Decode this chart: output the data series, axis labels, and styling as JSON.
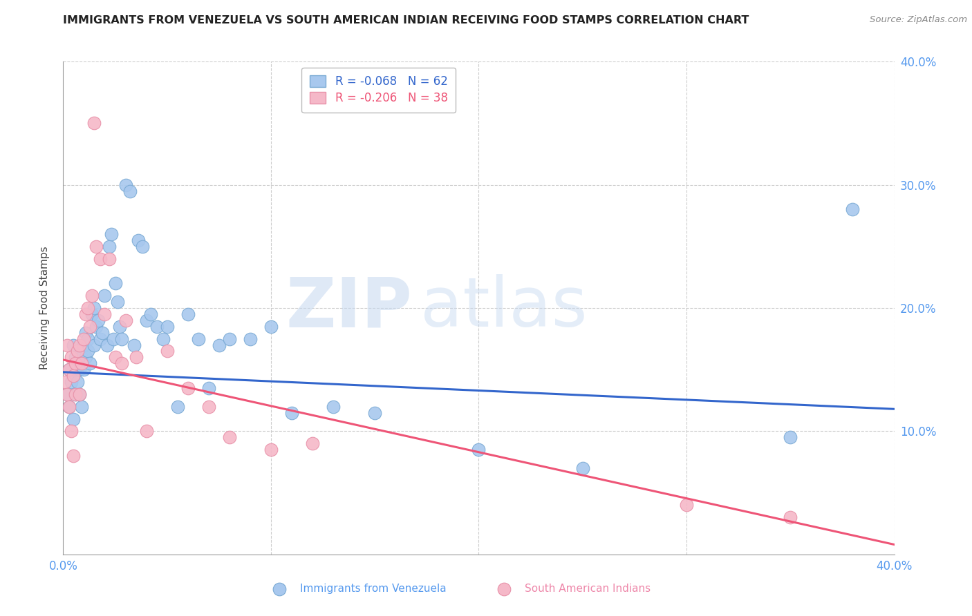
{
  "title": "IMMIGRANTS FROM VENEZUELA VS SOUTH AMERICAN INDIAN RECEIVING FOOD STAMPS CORRELATION CHART",
  "source": "Source: ZipAtlas.com",
  "ylabel": "Receiving Food Stamps",
  "xlim": [
    0.0,
    0.4
  ],
  "ylim": [
    0.0,
    0.4
  ],
  "legend_r1": "-0.068",
  "legend_n1": "62",
  "legend_r2": "-0.206",
  "legend_n2": "38",
  "color_blue": "#A8C8EE",
  "color_pink": "#F5B8C8",
  "color_blue_edge": "#7AAAD4",
  "color_pink_edge": "#E890A8",
  "color_trend_blue": "#3366CC",
  "color_trend_pink": "#EE5577",
  "background_color": "#ffffff",
  "grid_color": "#cccccc",
  "watermark_zip": "ZIP",
  "watermark_atlas": "atlas",
  "tick_color": "#5599EE",
  "scatter_blue_x": [
    0.002,
    0.003,
    0.003,
    0.004,
    0.005,
    0.005,
    0.006,
    0.006,
    0.007,
    0.007,
    0.008,
    0.008,
    0.009,
    0.009,
    0.01,
    0.01,
    0.011,
    0.011,
    0.012,
    0.012,
    0.013,
    0.014,
    0.015,
    0.015,
    0.016,
    0.017,
    0.018,
    0.019,
    0.02,
    0.021,
    0.022,
    0.023,
    0.024,
    0.025,
    0.026,
    0.027,
    0.028,
    0.03,
    0.032,
    0.034,
    0.036,
    0.038,
    0.04,
    0.042,
    0.045,
    0.048,
    0.05,
    0.055,
    0.06,
    0.065,
    0.07,
    0.075,
    0.08,
    0.09,
    0.1,
    0.11,
    0.13,
    0.15,
    0.2,
    0.25,
    0.38,
    0.35
  ],
  "scatter_blue_y": [
    0.13,
    0.15,
    0.12,
    0.14,
    0.17,
    0.11,
    0.16,
    0.13,
    0.15,
    0.14,
    0.15,
    0.13,
    0.16,
    0.12,
    0.17,
    0.15,
    0.18,
    0.16,
    0.175,
    0.165,
    0.155,
    0.195,
    0.17,
    0.2,
    0.185,
    0.19,
    0.175,
    0.18,
    0.21,
    0.17,
    0.25,
    0.26,
    0.175,
    0.22,
    0.205,
    0.185,
    0.175,
    0.3,
    0.295,
    0.17,
    0.255,
    0.25,
    0.19,
    0.195,
    0.185,
    0.175,
    0.185,
    0.12,
    0.195,
    0.175,
    0.135,
    0.17,
    0.175,
    0.175,
    0.185,
    0.115,
    0.12,
    0.115,
    0.085,
    0.07,
    0.28,
    0.095
  ],
  "scatter_pink_x": [
    0.001,
    0.002,
    0.002,
    0.003,
    0.003,
    0.004,
    0.004,
    0.005,
    0.005,
    0.006,
    0.006,
    0.007,
    0.008,
    0.008,
    0.009,
    0.01,
    0.011,
    0.012,
    0.013,
    0.014,
    0.015,
    0.016,
    0.018,
    0.02,
    0.022,
    0.025,
    0.028,
    0.03,
    0.035,
    0.04,
    0.05,
    0.06,
    0.07,
    0.08,
    0.1,
    0.12,
    0.3,
    0.35
  ],
  "scatter_pink_y": [
    0.14,
    0.17,
    0.13,
    0.12,
    0.15,
    0.16,
    0.1,
    0.145,
    0.08,
    0.155,
    0.13,
    0.165,
    0.17,
    0.13,
    0.155,
    0.175,
    0.195,
    0.2,
    0.185,
    0.21,
    0.35,
    0.25,
    0.24,
    0.195,
    0.24,
    0.16,
    0.155,
    0.19,
    0.16,
    0.1,
    0.165,
    0.135,
    0.12,
    0.095,
    0.085,
    0.09,
    0.04,
    0.03
  ],
  "trend_blue_y0": 0.148,
  "trend_blue_y1": 0.118,
  "trend_pink_y0": 0.158,
  "trend_pink_y1": 0.008
}
